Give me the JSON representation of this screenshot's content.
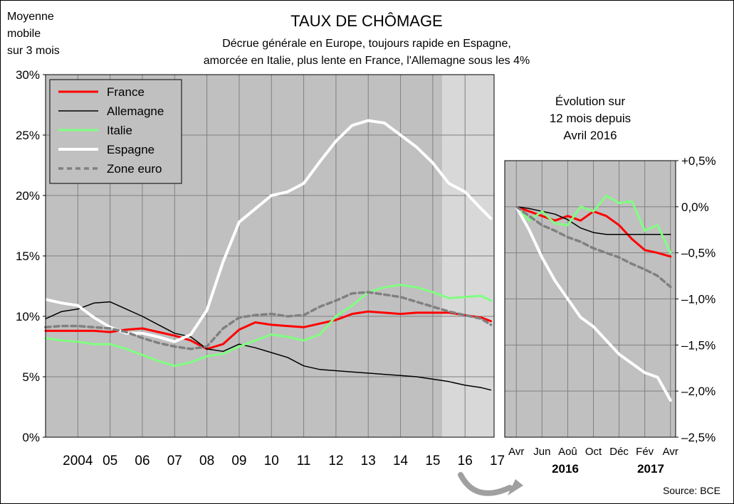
{
  "header": {
    "note_lines": [
      "Moyenne",
      "mobile",
      "sur 3 mois"
    ],
    "title": "TAUX DE CHÔMAGE",
    "subtitle_lines": [
      "Décrue générale en Europe, toujours rapide en Espagne,",
      "amorcée en Italie, plus lente en France, l'Allemagne sous les 4%"
    ]
  },
  "source": "Source: BCE",
  "colors": {
    "France": "#ff0000",
    "Allemagne": "#000000",
    "Italie": "#80ff80",
    "Espagne": "#ffffff",
    "Zone euro": "#808080",
    "plot_bg": "#c0c0c0",
    "plot_bg_recent": "#d8d8d8",
    "grid": "#808080"
  },
  "chart_data": [
    {
      "type": "line",
      "ylim": [
        0,
        30
      ],
      "xlim": [
        2003.5,
        2017.4
      ],
      "grid": true,
      "legend_position": "top-left",
      "y_ticks": [
        0,
        5,
        10,
        15,
        20,
        25,
        30
      ],
      "y_tick_labels": [
        "0%",
        "5%",
        "10%",
        "15%",
        "20%",
        "25%",
        "30%"
      ],
      "x_tick_labels": [
        "2004",
        "05",
        "06",
        "07",
        "08",
        "09",
        "10",
        "11",
        "12",
        "13",
        "14",
        "15",
        "16",
        "17"
      ],
      "x_tick_positions": [
        2004.5,
        2005.5,
        2006.5,
        2007.5,
        2008.5,
        2009.5,
        2010.5,
        2011.5,
        2012.5,
        2013.5,
        2014.5,
        2015.5,
        2016.5,
        2017.5
      ],
      "series": [
        {
          "name": "France",
          "x": [
            2003.5,
            2004.0,
            2004.5,
            2005.0,
            2005.5,
            2006.0,
            2006.5,
            2007.0,
            2007.5,
            2008.0,
            2008.5,
            2009.0,
            2009.5,
            2010.0,
            2010.5,
            2011.0,
            2011.5,
            2012.0,
            2012.5,
            2013.0,
            2013.5,
            2014.0,
            2014.5,
            2015.0,
            2015.5,
            2016.0,
            2016.5,
            2017.0,
            2017.3
          ],
          "y": [
            8.8,
            8.8,
            8.8,
            8.8,
            8.7,
            8.9,
            9.0,
            8.7,
            8.4,
            8.0,
            7.3,
            7.7,
            8.9,
            9.5,
            9.3,
            9.2,
            9.1,
            9.4,
            9.7,
            10.2,
            10.4,
            10.3,
            10.2,
            10.3,
            10.3,
            10.3,
            10.1,
            9.9,
            9.6
          ]
        },
        {
          "name": "Allemagne",
          "x": [
            2003.5,
            2004.0,
            2004.5,
            2005.0,
            2005.5,
            2006.0,
            2006.5,
            2007.0,
            2007.5,
            2008.0,
            2008.5,
            2009.0,
            2009.5,
            2010.0,
            2010.5,
            2011.0,
            2011.5,
            2012.0,
            2012.5,
            2013.0,
            2013.5,
            2014.0,
            2014.5,
            2015.0,
            2015.5,
            2016.0,
            2016.5,
            2017.0,
            2017.3
          ],
          "y": [
            9.8,
            10.4,
            10.6,
            11.1,
            11.2,
            10.6,
            10.0,
            9.3,
            8.6,
            8.3,
            7.3,
            7.1,
            7.7,
            7.4,
            7.0,
            6.6,
            5.9,
            5.6,
            5.5,
            5.4,
            5.3,
            5.2,
            5.1,
            5.0,
            4.8,
            4.6,
            4.3,
            4.1,
            3.9
          ]
        },
        {
          "name": "Italie",
          "x": [
            2003.5,
            2004.0,
            2004.5,
            2005.0,
            2005.5,
            2006.0,
            2006.5,
            2007.0,
            2007.5,
            2008.0,
            2008.5,
            2009.0,
            2009.5,
            2010.0,
            2010.5,
            2011.0,
            2011.5,
            2012.0,
            2012.5,
            2013.0,
            2013.5,
            2014.0,
            2014.5,
            2015.0,
            2015.5,
            2016.0,
            2016.5,
            2017.0,
            2017.3
          ],
          "y": [
            8.2,
            8.0,
            7.9,
            7.7,
            7.7,
            7.3,
            6.8,
            6.3,
            5.9,
            6.2,
            6.7,
            6.9,
            7.5,
            8.0,
            8.5,
            8.3,
            8.0,
            8.5,
            10.0,
            10.9,
            12.0,
            12.4,
            12.6,
            12.4,
            12.0,
            11.5,
            11.6,
            11.7,
            11.3
          ]
        },
        {
          "name": "Espagne",
          "x": [
            2003.5,
            2004.0,
            2004.5,
            2005.0,
            2005.5,
            2006.0,
            2006.5,
            2007.0,
            2007.5,
            2008.0,
            2008.5,
            2009.0,
            2009.5,
            2010.0,
            2010.5,
            2011.0,
            2011.5,
            2012.0,
            2012.5,
            2013.0,
            2013.5,
            2014.0,
            2014.5,
            2015.0,
            2015.5,
            2016.0,
            2016.5,
            2017.0,
            2017.3
          ],
          "y": [
            11.4,
            11.1,
            10.9,
            9.9,
            9.1,
            8.6,
            8.6,
            8.3,
            7.9,
            8.5,
            10.5,
            14.5,
            17.8,
            18.9,
            20.0,
            20.3,
            21.0,
            22.8,
            24.5,
            25.8,
            26.2,
            26.0,
            25.0,
            24.0,
            22.7,
            21.0,
            20.3,
            18.9,
            18.1
          ]
        },
        {
          "name": "Zone euro",
          "x": [
            2003.5,
            2004.0,
            2004.5,
            2005.0,
            2005.5,
            2006.0,
            2006.5,
            2007.0,
            2007.5,
            2008.0,
            2008.5,
            2009.0,
            2009.5,
            2010.0,
            2010.5,
            2011.0,
            2011.5,
            2012.0,
            2012.5,
            2013.0,
            2013.5,
            2014.0,
            2014.5,
            2015.0,
            2015.5,
            2016.0,
            2016.5,
            2017.0,
            2017.3
          ],
          "y": [
            9.1,
            9.2,
            9.2,
            9.1,
            9.0,
            8.7,
            8.2,
            7.8,
            7.5,
            7.3,
            7.5,
            9.0,
            9.9,
            10.1,
            10.2,
            10.0,
            10.1,
            10.8,
            11.3,
            11.9,
            12.0,
            11.8,
            11.6,
            11.2,
            10.8,
            10.4,
            10.1,
            9.8,
            9.3
          ]
        }
      ]
    },
    {
      "type": "line",
      "title_lines": [
        "Évolution sur",
        "12 mois depuis",
        "Avril 2016"
      ],
      "ylim": [
        -2.5,
        0.5
      ],
      "grid": true,
      "y_axis_side": "right",
      "y_ticks": [
        0.5,
        0,
        -0.5,
        -1.0,
        -1.5,
        -2.0,
        -2.5
      ],
      "y_tick_labels": [
        "+0,5%",
        "0,0%",
        "–0,5%",
        "–1,0%",
        "–1,5%",
        "–2,0%",
        "–2,5%"
      ],
      "x_tick_labels": [
        "Avr",
        "Jun",
        "Aoû",
        "Oct",
        "Déc",
        "Fév",
        "Avr"
      ],
      "x_tick_positions": [
        0,
        2,
        4,
        6,
        8,
        10,
        12
      ],
      "x_year_labels": [
        "2016",
        "2017"
      ],
      "x": [
        0,
        1,
        2,
        3,
        4,
        5,
        6,
        7,
        8,
        9,
        10,
        11,
        12
      ],
      "series": [
        {
          "name": "France",
          "y": [
            0.0,
            -0.05,
            -0.1,
            -0.15,
            -0.1,
            -0.15,
            -0.05,
            -0.1,
            -0.2,
            -0.35,
            -0.47,
            -0.5,
            -0.54
          ]
        },
        {
          "name": "Allemagne",
          "y": [
            0.0,
            -0.02,
            -0.05,
            -0.08,
            -0.14,
            -0.23,
            -0.28,
            -0.3,
            -0.3,
            -0.3,
            -0.3,
            -0.3,
            -0.3
          ]
        },
        {
          "name": "Italie",
          "y": [
            0.0,
            -0.15,
            -0.05,
            -0.18,
            -0.2,
            0.0,
            -0.05,
            0.12,
            0.04,
            0.06,
            -0.26,
            -0.2,
            -0.5
          ]
        },
        {
          "name": "Espagne",
          "y": [
            0.0,
            -0.25,
            -0.55,
            -0.8,
            -1.0,
            -1.2,
            -1.3,
            -1.45,
            -1.6,
            -1.7,
            -1.8,
            -1.85,
            -2.1
          ]
        },
        {
          "name": "Zone euro",
          "y": [
            0.0,
            -0.1,
            -0.2,
            -0.26,
            -0.33,
            -0.38,
            -0.45,
            -0.5,
            -0.55,
            -0.62,
            -0.68,
            -0.75,
            -0.87
          ]
        }
      ]
    }
  ]
}
